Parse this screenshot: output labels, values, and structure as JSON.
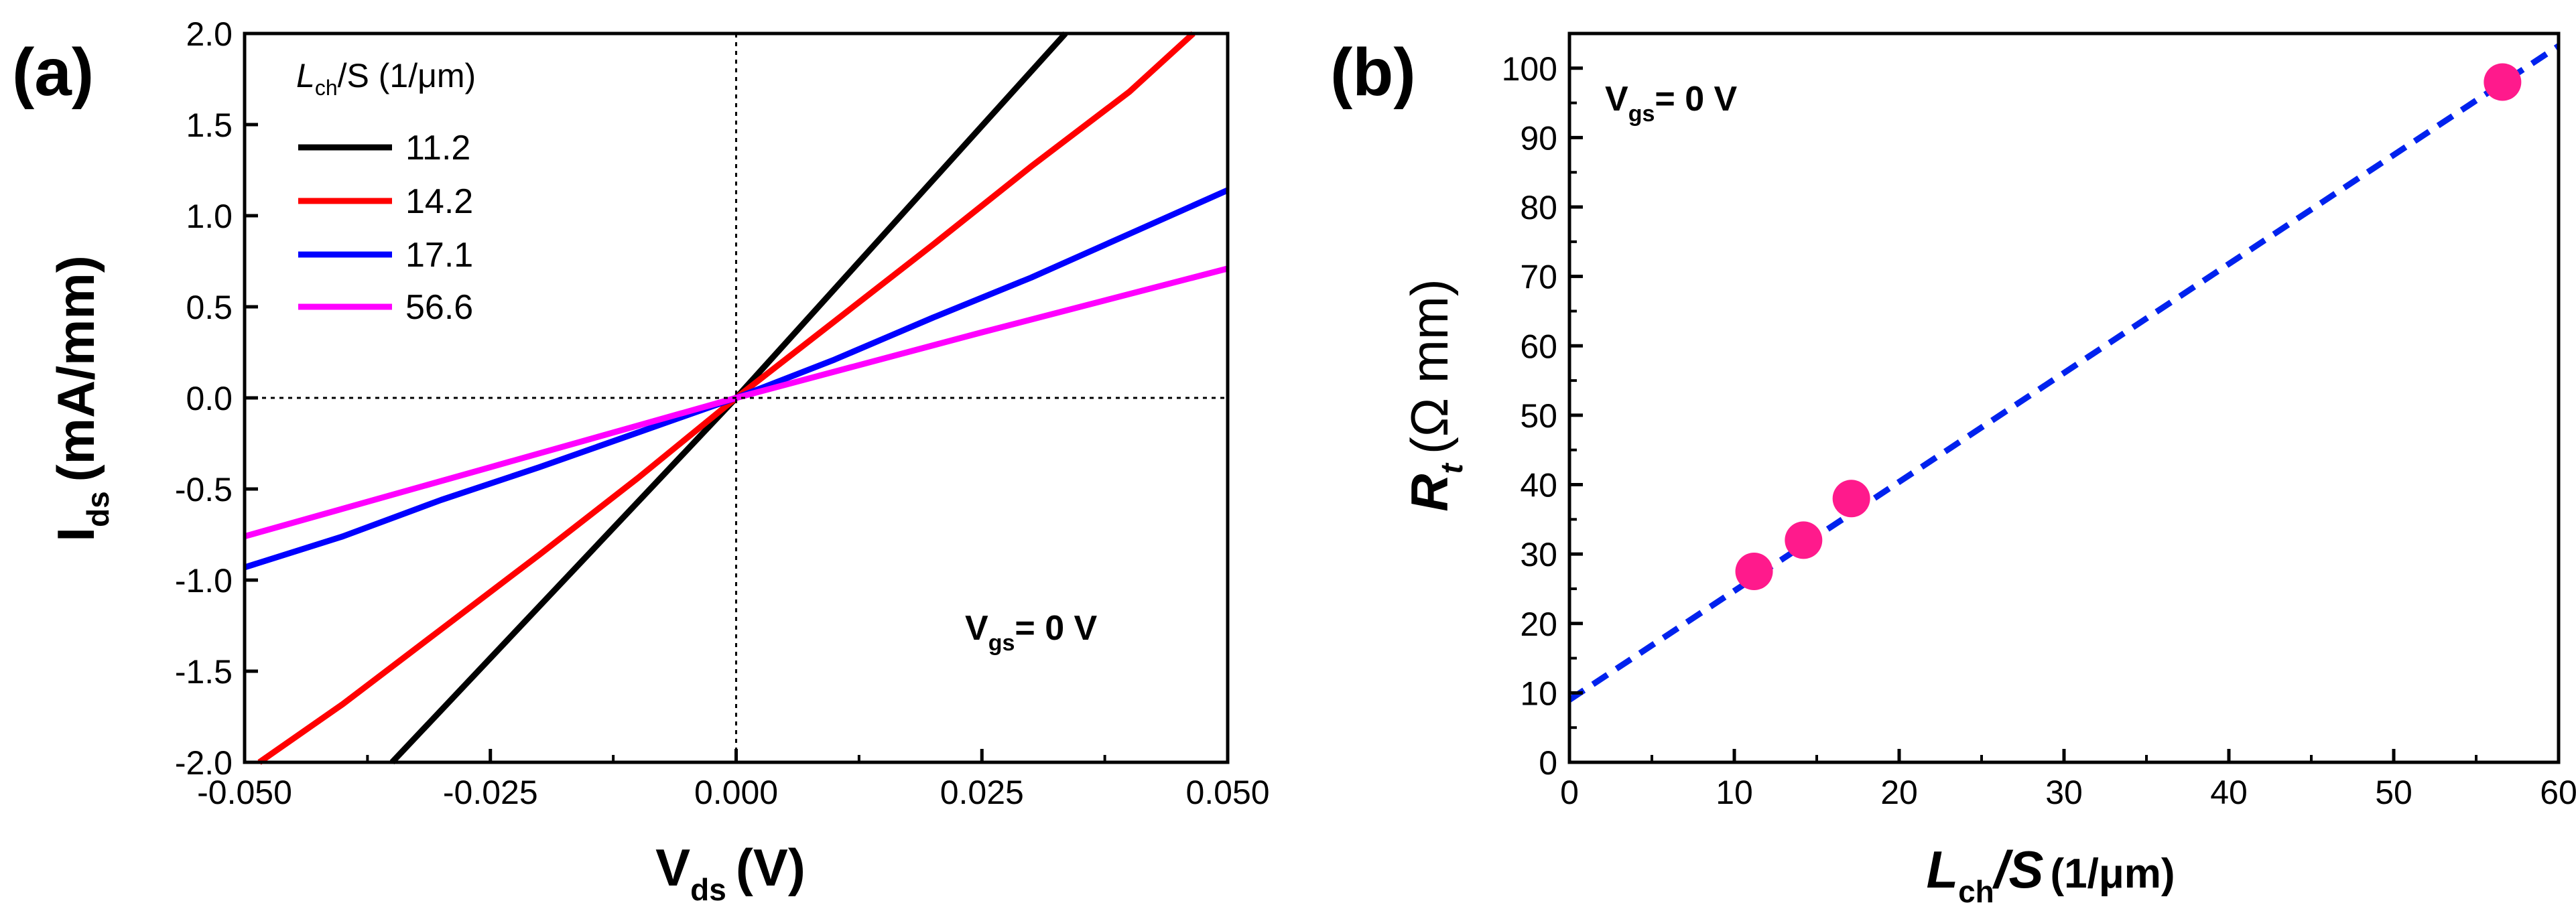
{
  "chart_data": [
    {
      "panel_label": "(a)",
      "type": "line",
      "xlabel": {
        "main": "V",
        "sub": "ds",
        "unit": "(V)"
      },
      "ylabel": {
        "main": "I",
        "sub": "ds",
        "unit": "(mA/mm)"
      },
      "xlim": [
        -0.05,
        0.05
      ],
      "ylim": [
        -2.0,
        2.0
      ],
      "xticks": [
        "-0.050",
        "-0.025",
        "0.000",
        "0.025",
        "0.050"
      ],
      "yticks": [
        "-2.0",
        "-1.5",
        "-1.0",
        "-0.5",
        "0.0",
        "0.5",
        "1.0",
        "1.5",
        "2.0"
      ],
      "grid": false,
      "reference_lines": "dotted lines at x = 0 and y = 0",
      "legend": {
        "title_main": "L",
        "title_sub": "ch",
        "title_rest": "/S (1/μm)",
        "placement": "top-left"
      },
      "annotation": {
        "main": "V",
        "sub": "gs",
        "rest": "= 0 V"
      },
      "series": [
        {
          "name": "11.2",
          "color": "#000000",
          "x": [
            -0.035,
            0.0,
            0.0335
          ],
          "y": [
            -2.0,
            0.0,
            2.0
          ]
        },
        {
          "name": "14.2",
          "color": "#ff0000",
          "x": [
            -0.0485,
            -0.04,
            -0.03,
            -0.02,
            -0.01,
            0.0,
            0.01,
            0.02,
            0.03,
            0.04,
            0.0465
          ],
          "y": [
            -2.0,
            -1.68,
            -1.27,
            -0.86,
            -0.44,
            0.0,
            0.42,
            0.84,
            1.27,
            1.68,
            2.0
          ]
        },
        {
          "name": "17.1",
          "color": "#0000ff",
          "x": [
            -0.05,
            -0.04,
            -0.03,
            -0.02,
            -0.01,
            0.0,
            0.01,
            0.02,
            0.03,
            0.04,
            0.05
          ],
          "y": [
            -0.93,
            -0.76,
            -0.56,
            -0.38,
            -0.19,
            0.0,
            0.21,
            0.44,
            0.66,
            0.9,
            1.14
          ]
        },
        {
          "name": "56.6",
          "color": "#ff00ff",
          "x": [
            -0.05,
            -0.025,
            0.0,
            0.025,
            0.05
          ],
          "y": [
            -0.76,
            -0.38,
            0.0,
            0.36,
            0.71
          ]
        }
      ]
    },
    {
      "panel_label": "(b)",
      "type": "scatter",
      "xlabel": {
        "main": "L",
        "sub": "ch",
        "rest": "/S",
        "unit": "(1/μm)"
      },
      "ylabel": {
        "main": "R",
        "sub": "t",
        "unit": "(Ω mm)"
      },
      "xlim": [
        0,
        60
      ],
      "ylim": [
        0,
        105
      ],
      "xticks": [
        "0",
        "10",
        "20",
        "30",
        "40",
        "50",
        "60"
      ],
      "yticks": [
        "0",
        "10",
        "20",
        "30",
        "40",
        "50",
        "60",
        "70",
        "80",
        "90",
        "100"
      ],
      "grid": false,
      "annotation": {
        "main": "V",
        "sub": "gs",
        "rest": "= 0 V"
      },
      "points": {
        "color": "#ff1a8c",
        "x": [
          11.2,
          14.2,
          17.1,
          56.6
        ],
        "y": [
          27.5,
          32,
          38,
          98
        ]
      },
      "fit_line": {
        "color": "#0022ee",
        "style": "dashed",
        "intercept": 9.0,
        "slope": 1.57
      }
    }
  ]
}
